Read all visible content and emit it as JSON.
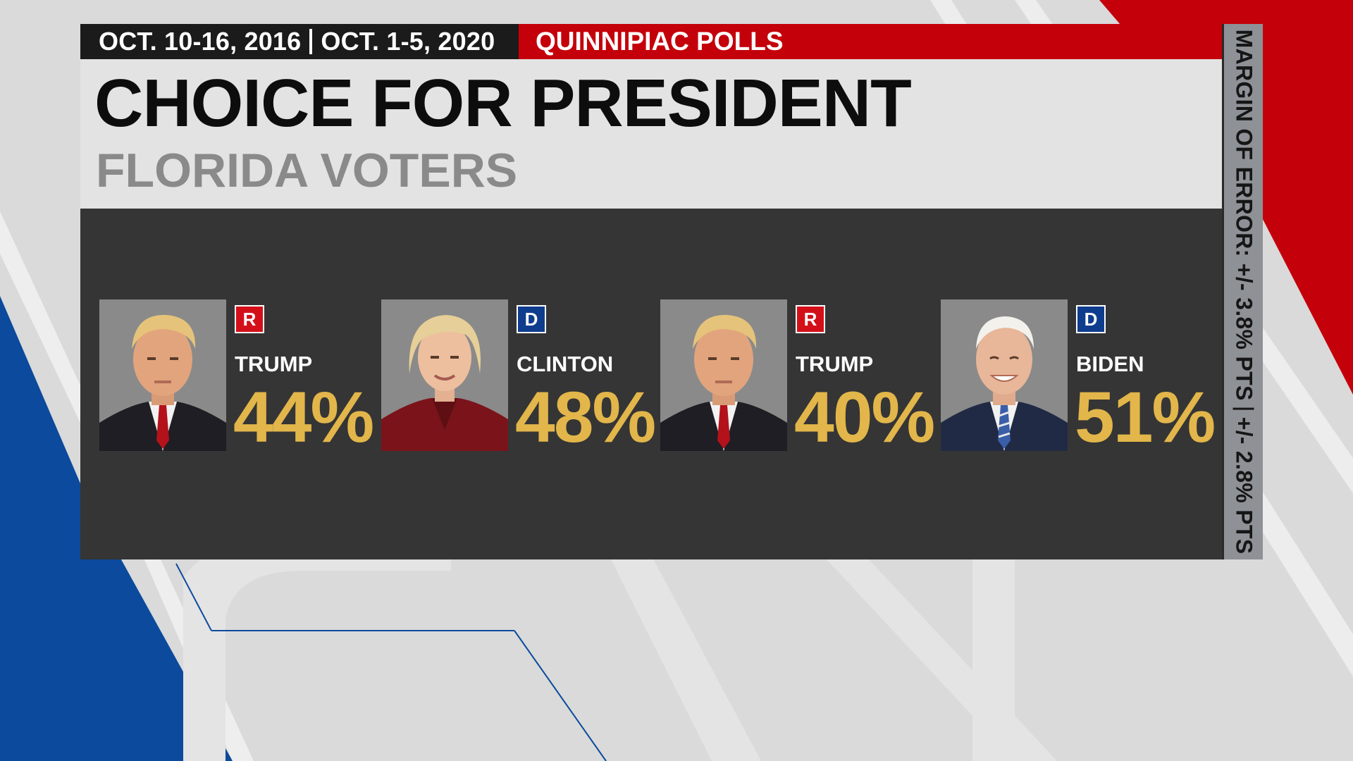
{
  "header": {
    "dates": [
      "OCT. 10-16, 2016",
      "OCT. 1-5, 2020"
    ],
    "source": "QUINNIPIAC POLLS",
    "title": "CHOICE FOR PRESIDENT",
    "subtitle": "FLORIDA VOTERS"
  },
  "margin_of_error": {
    "label": "MARGIN OF ERROR: +/- 3.8% PTS",
    "label2": "+/- 2.8% PTS"
  },
  "candidates": [
    {
      "name": "TRUMP",
      "party": "R",
      "percent": "44%",
      "party_color": "#d3101a",
      "icon": "trump-photo"
    },
    {
      "name": "CLINTON",
      "party": "D",
      "percent": "48%",
      "party_color": "#0f3d8e",
      "icon": "clinton-photo"
    },
    {
      "name": "TRUMP",
      "party": "R",
      "percent": "40%",
      "party_color": "#d3101a",
      "icon": "trump-photo"
    },
    {
      "name": "BIDEN",
      "party": "D",
      "percent": "51%",
      "party_color": "#0f3d8e",
      "icon": "biden-photo"
    }
  ],
  "colors": {
    "accent_red": "#c4000a",
    "accent_blue": "#0b4a9c",
    "percent_gold": "#e2b64a",
    "content_bg": "#353535"
  }
}
